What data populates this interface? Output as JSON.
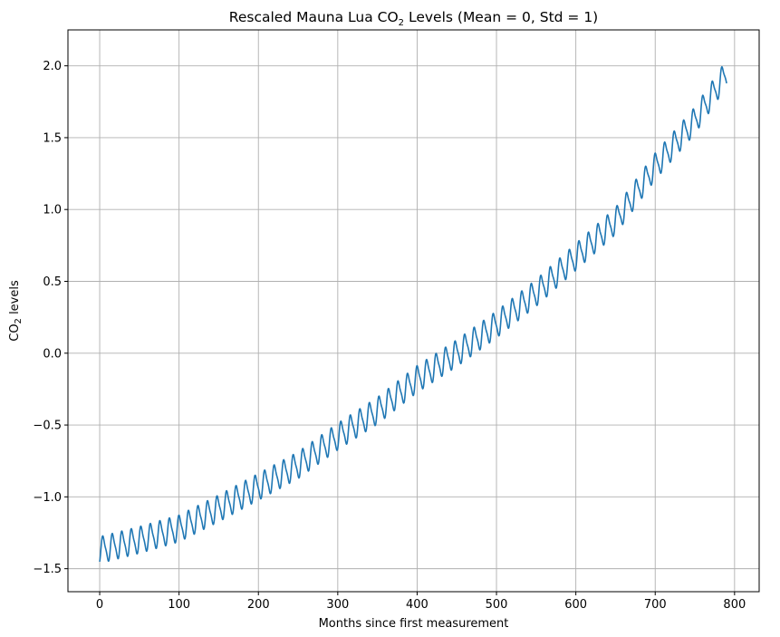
{
  "chart_data": {
    "type": "line",
    "title": {
      "before": "Rescaled Mauna Lua CO",
      "sub": "2",
      "after": " Levels (Mean = 0, Std = 1)"
    },
    "xlabel": "Months since first measurement",
    "ylabel": {
      "before": "CO",
      "sub": "2",
      "after": " levels"
    },
    "xlim": [
      -40,
      831
    ],
    "ylim": [
      -1.66,
      2.25
    ],
    "xticks": [
      0,
      100,
      200,
      300,
      400,
      500,
      600,
      700,
      800
    ],
    "yticks": [
      -1.5,
      -1.0,
      -0.5,
      0.0,
      0.5,
      1.0,
      1.5,
      2.0
    ],
    "xtick_labels": [
      "0",
      "100",
      "200",
      "300",
      "400",
      "500",
      "600",
      "700",
      "800"
    ],
    "ytick_labels": [
      "−1.5",
      "−1.0",
      "−0.5",
      "0.0",
      "0.5",
      "1.0",
      "1.5",
      "2.0"
    ],
    "grid": true,
    "line_color": "#1f77b4",
    "grid_color": "#b0b0b0",
    "series": [
      {
        "months": [
          0,
          790
        ],
        "trend_knots": [
          [
            0,
            -1.37
          ],
          [
            50,
            -1.3
          ],
          [
            100,
            -1.22
          ],
          [
            150,
            -1.08
          ],
          [
            200,
            -0.93
          ],
          [
            250,
            -0.78
          ],
          [
            300,
            -0.58
          ],
          [
            350,
            -0.4
          ],
          [
            400,
            -0.18
          ],
          [
            450,
            0.0
          ],
          [
            500,
            0.2
          ],
          [
            550,
            0.42
          ],
          [
            600,
            0.67
          ],
          [
            650,
            0.92
          ],
          [
            700,
            1.3
          ],
          [
            750,
            1.62
          ],
          [
            790,
            1.95
          ]
        ],
        "seasonal_amplitude": 0.085,
        "period_months": 12
      }
    ]
  }
}
